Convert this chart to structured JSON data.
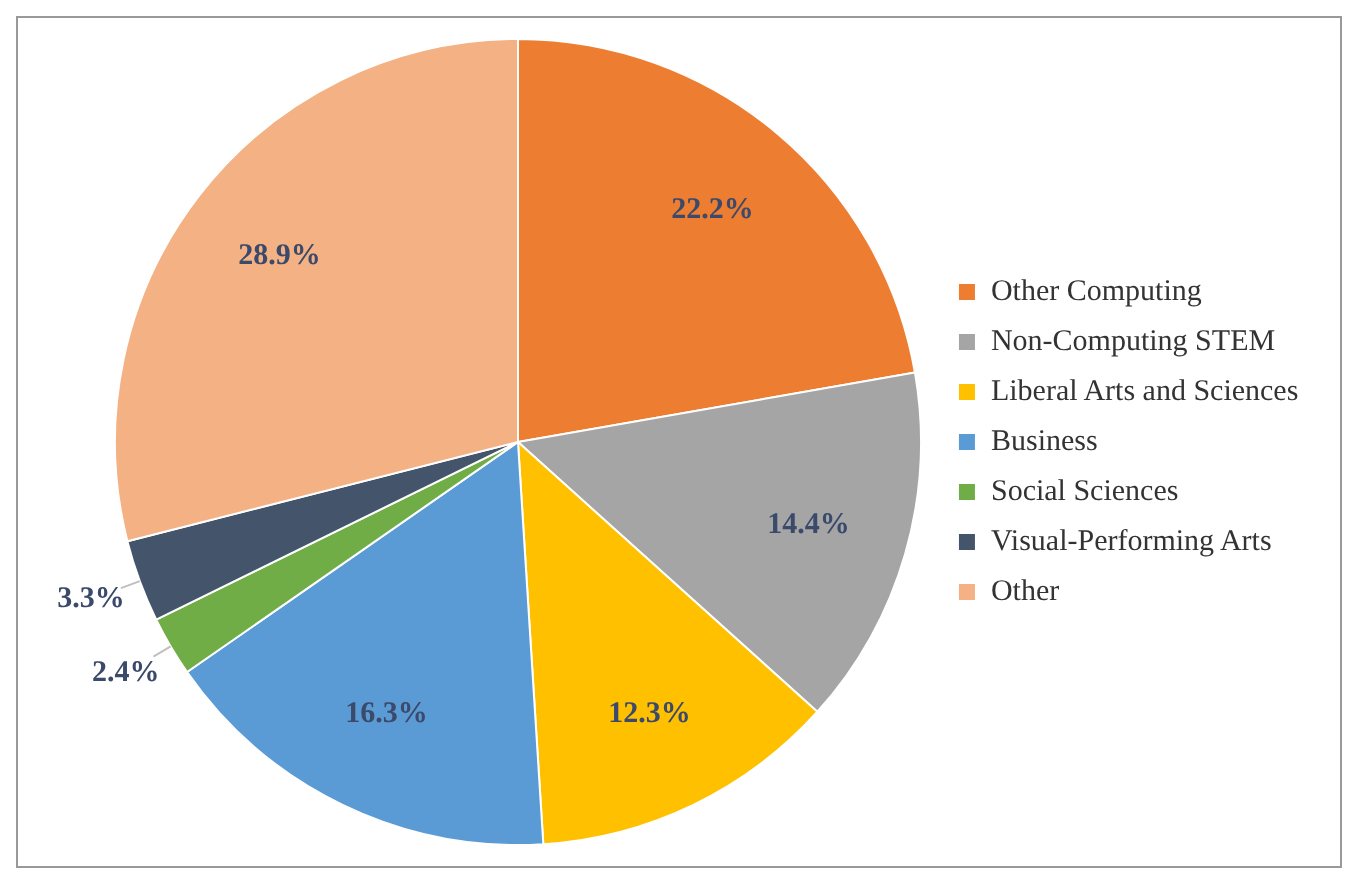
{
  "chart_data": {
    "type": "pie",
    "categories": [
      "Other Computing",
      "Non-Computing STEM",
      "Liberal Arts and Sciences",
      "Business",
      "Social Sciences",
      "Visual-Performing Arts",
      "Other"
    ],
    "values": [
      22.2,
      14.4,
      12.3,
      16.3,
      2.4,
      3.3,
      28.9
    ],
    "colors": [
      "#ed7d31",
      "#a5a5a5",
      "#ffc000",
      "#5b9bd5",
      "#70ad47",
      "#44546a",
      "#f4b183"
    ],
    "value_labels": [
      "22.2%",
      "14.4%",
      "12.3%",
      "16.3%",
      "2.4%",
      "3.3%",
      "28.9%"
    ],
    "legend": "right"
  }
}
